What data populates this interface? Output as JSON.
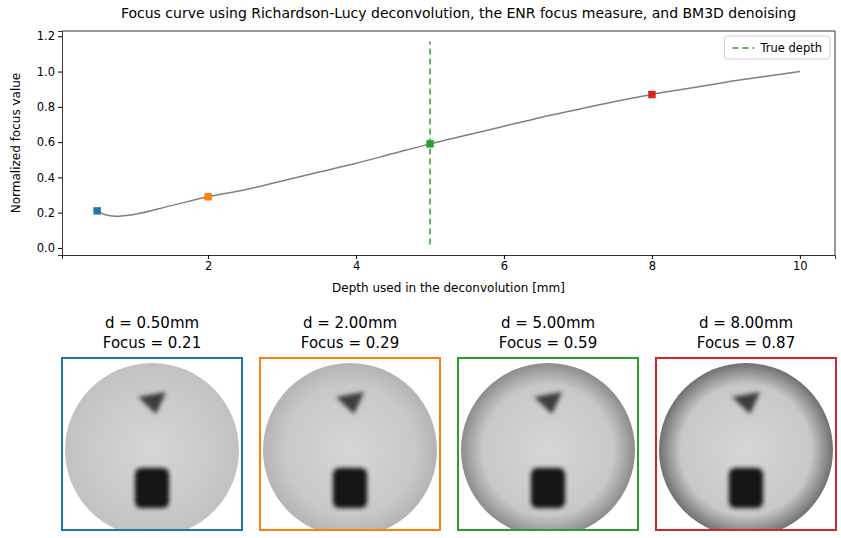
{
  "chart_data": {
    "type": "line",
    "title": "Focus curve using Richardson-Lucy deconvolution, the ENR focus measure, and BM3D denoising",
    "x_label": "Depth used in the deconvolution [mm]",
    "y_label": "Normalized focus value",
    "xlim": [
      0.025,
      10.475
    ],
    "ylim": [
      -0.04,
      1.23
    ],
    "xticks": [
      2,
      4,
      6,
      8,
      10
    ],
    "yticks": [
      {
        "value": 0,
        "label": "0.0"
      },
      0.2,
      0.4,
      0.6,
      0.8,
      {
        "value": 1,
        "label": "1.0"
      },
      1.2
    ],
    "grid": false,
    "legend": "upper right",
    "series": [
      {
        "type": "line",
        "color": "#808080",
        "line_style": "solid",
        "x": [
          0.5,
          0.6,
          0.75,
          1.0,
          1.5,
          2.0,
          2.5,
          3.0,
          3.5,
          4.0,
          4.5,
          5.0,
          5.5,
          6.0,
          6.5,
          7.0,
          7.5,
          8.0,
          8.5,
          9.0,
          9.5,
          10.0
        ],
        "values": [
          0.21,
          0.19,
          0.18,
          0.19,
          0.24,
          0.29,
          0.33,
          0.38,
          0.43,
          0.48,
          0.535,
          0.59,
          0.64,
          0.69,
          0.74,
          0.785,
          0.83,
          0.87,
          0.905,
          0.94,
          0.97,
          1.0
        ]
      },
      {
        "type": "scatter",
        "marker": "square",
        "colors": [
          "#1f77b4",
          "#ff7f0e",
          "#2ca02c",
          "#d62728"
        ],
        "x": [
          0.5,
          2,
          5,
          8
        ],
        "values": [
          0.21,
          0.29,
          0.59,
          0.87
        ]
      }
    ],
    "vline": {
      "name": "True depth",
      "x": 5,
      "ymin": 0.02,
      "ymax": 1.17,
      "color": "#2ca02c",
      "line_style": "dashed"
    },
    "panels": [
      {
        "label": "d = 0.50mm",
        "focus_label": "Focus = 0.21",
        "color": "#1f77b4"
      },
      {
        "label": "d = 2.00mm",
        "focus_label": "Focus = 0.29",
        "color": "#ff7f0e"
      },
      {
        "label": "d = 5.00mm",
        "focus_label": "Focus = 0.59",
        "color": "#2ca02c"
      },
      {
        "label": "d = 8.00mm",
        "focus_label": "Focus = 0.87",
        "color": "#d62728"
      }
    ]
  }
}
